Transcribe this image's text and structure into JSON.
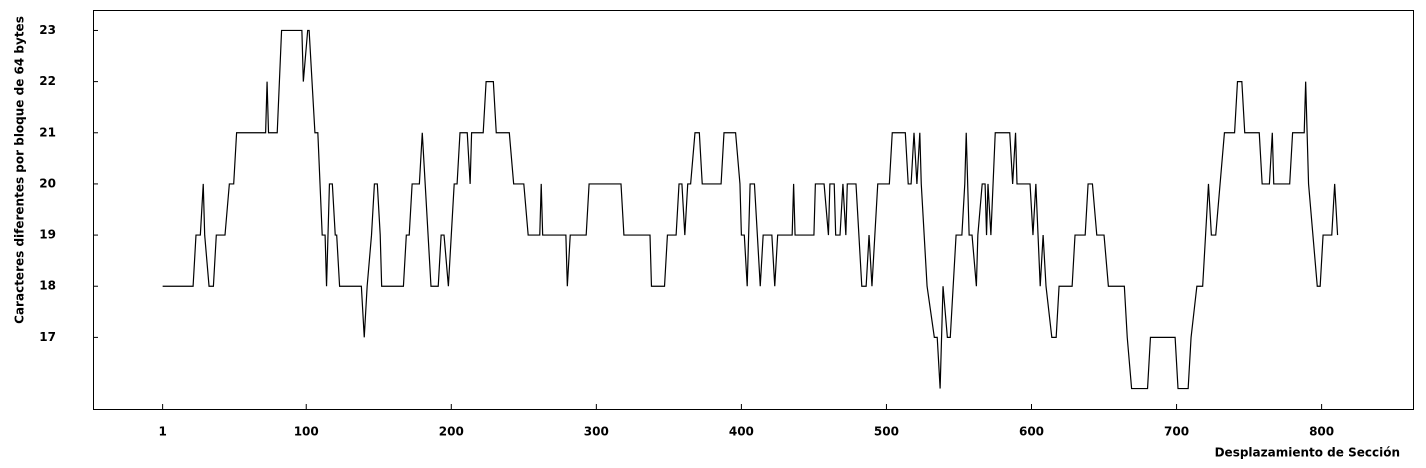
{
  "chart_data": {
    "type": "line",
    "x_label": "Desplazamiento de Sección",
    "y_label": "Caracteres diferentes por bloque de 64 bytes",
    "x": [
      1,
      22,
      24,
      27,
      29,
      30,
      33,
      36,
      38,
      44,
      47,
      50,
      52,
      72,
      73,
      74,
      80,
      83,
      97,
      98,
      101,
      102,
      106,
      108,
      111,
      113,
      114,
      116,
      118,
      120,
      121,
      123,
      138,
      140,
      142,
      145,
      147,
      149,
      151,
      152,
      167,
      169,
      171,
      173,
      178,
      180,
      182,
      186,
      191,
      193,
      195,
      198,
      200,
      202,
      204,
      206,
      211,
      213,
      214,
      222,
      224,
      229,
      231,
      240,
      243,
      250,
      253,
      261,
      262,
      263,
      279,
      280,
      282,
      293,
      295,
      317,
      319,
      337,
      338,
      347,
      349,
      355,
      357,
      359,
      361,
      363,
      365,
      368,
      371,
      373,
      386,
      388,
      396,
      399,
      400,
      402,
      404,
      406,
      409,
      411,
      413,
      415,
      421,
      423,
      425,
      435,
      436,
      437,
      450,
      451,
      457,
      460,
      461,
      464,
      465,
      468,
      470,
      472,
      473,
      479,
      481,
      483,
      486,
      488,
      490,
      492,
      494,
      502,
      504,
      513,
      515,
      517,
      519,
      521,
      523,
      524,
      528,
      533,
      535,
      537,
      539,
      542,
      544,
      548,
      552,
      554,
      555,
      557,
      559,
      562,
      563,
      566,
      568,
      569,
      570,
      572,
      575,
      585,
      587,
      589,
      590,
      599,
      601,
      603,
      606,
      608,
      610,
      614,
      617,
      619,
      628,
      630,
      637,
      639,
      642,
      645,
      650,
      653,
      664,
      666,
      669,
      680,
      682,
      699,
      701,
      708,
      710,
      714,
      718,
      720,
      722,
      724,
      727,
      730,
      733,
      740,
      742,
      745,
      747,
      757,
      759,
      764,
      766,
      767,
      778,
      780,
      788,
      789,
      791,
      794,
      797,
      799,
      801,
      807,
      809,
      811
    ],
    "values": [
      18,
      18,
      19,
      19,
      20,
      19,
      18,
      18,
      19,
      19,
      20,
      20,
      21,
      21,
      22,
      21,
      21,
      23,
      23,
      22,
      23,
      23,
      21,
      21,
      19,
      19,
      18,
      20,
      20,
      19,
      19,
      18,
      18,
      17,
      18,
      19,
      20,
      20,
      19,
      18,
      18,
      19,
      19,
      20,
      20,
      21,
      20,
      18,
      18,
      19,
      19,
      18,
      19,
      20,
      20,
      21,
      21,
      20,
      21,
      21,
      22,
      22,
      21,
      21,
      20,
      20,
      19,
      19,
      20,
      19,
      19,
      18,
      19,
      19,
      20,
      20,
      19,
      19,
      18,
      18,
      19,
      19,
      20,
      20,
      19,
      20,
      20,
      21,
      21,
      20,
      20,
      21,
      21,
      20,
      19,
      19,
      18,
      20,
      20,
      19,
      18,
      19,
      19,
      18,
      19,
      19,
      20,
      19,
      19,
      20,
      20,
      19,
      20,
      20,
      19,
      19,
      20,
      19,
      20,
      20,
      19,
      18,
      18,
      19,
      18,
      19,
      20,
      20,
      21,
      21,
      20,
      20,
      21,
      20,
      21,
      20,
      18,
      17,
      17,
      16,
      18,
      17,
      17,
      19,
      19,
      20,
      21,
      19,
      19,
      18,
      19,
      20,
      20,
      19,
      20,
      19,
      21,
      21,
      20,
      21,
      20,
      20,
      19,
      20,
      18,
      19,
      18,
      17,
      17,
      18,
      18,
      19,
      19,
      20,
      20,
      19,
      19,
      18,
      18,
      17,
      16,
      16,
      17,
      17,
      16,
      16,
      17,
      18,
      18,
      19,
      20,
      19,
      19,
      20,
      21,
      21,
      22,
      22,
      21,
      21,
      20,
      20,
      21,
      20,
      20,
      21,
      21,
      22,
      20,
      19,
      18,
      18,
      19,
      19,
      20,
      19
    ],
    "color": "#000000",
    "xlim": [
      -47,
      863
    ],
    "ylim": [
      15.6,
      23.4
    ],
    "xticks": [
      1,
      100,
      200,
      300,
      400,
      500,
      600,
      700,
      800
    ],
    "yticks": [
      17,
      18,
      19,
      20,
      21,
      22,
      23
    ]
  }
}
